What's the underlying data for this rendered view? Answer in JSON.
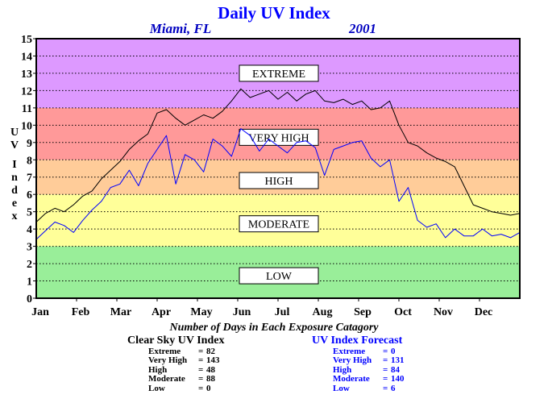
{
  "chart_data": {
    "type": "line",
    "title": "Daily UV Index",
    "subtitle_location": "Miami, FL",
    "subtitle_year": "2001",
    "ylabel": "UV Index",
    "ylim": [
      0,
      15
    ],
    "xlim": [
      1,
      365
    ],
    "yticks": [
      0,
      1,
      2,
      3,
      4,
      5,
      6,
      7,
      8,
      9,
      10,
      11,
      12,
      13,
      14,
      15
    ],
    "xtick_labels": [
      "Jan",
      "Feb",
      "Mar",
      "Apr",
      "May",
      "Jun",
      "Jul",
      "Aug",
      "Sep",
      "Oct",
      "Nov",
      "Dec"
    ],
    "grid": true,
    "bands": [
      {
        "label": "LOW",
        "from": 0,
        "to": 3,
        "color": "#99ee99"
      },
      {
        "label": "MODERATE",
        "from": 3,
        "to": 6,
        "color": "#ffff99"
      },
      {
        "label": "HIGH",
        "from": 6,
        "to": 8,
        "color": "#ffcc99"
      },
      {
        "label": "VERY HIGH",
        "from": 8,
        "to": 11,
        "color": "#ff9999"
      },
      {
        "label": "EXTREME",
        "from": 11,
        "to": 15,
        "color": "#dd99ff"
      }
    ],
    "series": [
      {
        "name": "Clear Sky UV Index",
        "color": "#000000",
        "x": [
          1,
          8,
          15,
          22,
          29,
          36,
          43,
          50,
          57,
          64,
          71,
          78,
          85,
          92,
          99,
          106,
          113,
          120,
          127,
          134,
          141,
          148,
          155,
          162,
          169,
          176,
          183,
          190,
          197,
          204,
          211,
          218,
          225,
          232,
          239,
          246,
          253,
          260,
          267,
          274,
          281,
          288,
          295,
          302,
          309,
          316,
          323,
          330,
          337,
          344,
          351,
          358,
          365
        ],
        "y": [
          4.4,
          4.9,
          5.2,
          5.0,
          5.4,
          5.9,
          6.2,
          6.9,
          7.4,
          7.9,
          8.6,
          9.1,
          9.5,
          10.7,
          10.9,
          10.4,
          10.0,
          10.3,
          10.6,
          10.4,
          10.8,
          11.4,
          12.1,
          11.6,
          11.8,
          12.0,
          11.5,
          11.9,
          11.4,
          11.8,
          12.0,
          11.4,
          11.3,
          11.5,
          11.2,
          11.4,
          10.9,
          11.0,
          11.4,
          10.0,
          9.0,
          8.8,
          8.4,
          8.1,
          7.9,
          7.6,
          6.5,
          5.4,
          5.2,
          5.0,
          4.9,
          4.8,
          4.9
        ]
      },
      {
        "name": "UV Index Forecast",
        "color": "#0000ff",
        "x": [
          1,
          8,
          15,
          22,
          29,
          36,
          43,
          50,
          57,
          64,
          71,
          78,
          85,
          92,
          99,
          106,
          113,
          120,
          127,
          134,
          141,
          148,
          155,
          162,
          169,
          176,
          183,
          190,
          197,
          204,
          211,
          218,
          225,
          232,
          239,
          246,
          253,
          260,
          267,
          274,
          281,
          288,
          295,
          302,
          309,
          316,
          323,
          330,
          337,
          344,
          351,
          358,
          365
        ],
        "y": [
          3.4,
          3.9,
          4.4,
          4.2,
          3.8,
          4.5,
          5.1,
          5.6,
          6.4,
          6.6,
          7.4,
          6.5,
          7.8,
          8.6,
          9.4,
          6.6,
          8.3,
          8.0,
          7.3,
          9.2,
          8.8,
          8.2,
          9.8,
          9.4,
          8.5,
          9.2,
          8.8,
          8.4,
          9.0,
          9.1,
          8.7,
          7.1,
          8.6,
          8.8,
          9.0,
          9.1,
          8.1,
          7.6,
          8.0,
          5.6,
          6.4,
          4.5,
          4.1,
          4.3,
          3.5,
          4.0,
          3.6,
          3.6,
          4.0,
          3.6,
          3.7,
          3.5,
          3.8
        ]
      }
    ],
    "band_label_display": [
      "EXTREME",
      "VERY HIGH",
      "HIGH",
      "MODERATE",
      "LOW"
    ]
  },
  "summary": {
    "title": "Number of Days in Each Exposure Catagory",
    "clear_sky": {
      "title": "Clear Sky UV Index",
      "rows": [
        {
          "label": "Extreme",
          "value": "82"
        },
        {
          "label": "Very High",
          "value": "143"
        },
        {
          "label": "High",
          "value": "48"
        },
        {
          "label": "Moderate",
          "value": "88"
        },
        {
          "label": "Low",
          "value": "0"
        }
      ]
    },
    "forecast": {
      "title": "UV Index Forecast",
      "rows": [
        {
          "label": "Extreme",
          "value": "0"
        },
        {
          "label": "Very High",
          "value": "131"
        },
        {
          "label": "High",
          "value": "84"
        },
        {
          "label": "Moderate",
          "value": "140"
        },
        {
          "label": "Low",
          "value": "6"
        }
      ]
    }
  }
}
